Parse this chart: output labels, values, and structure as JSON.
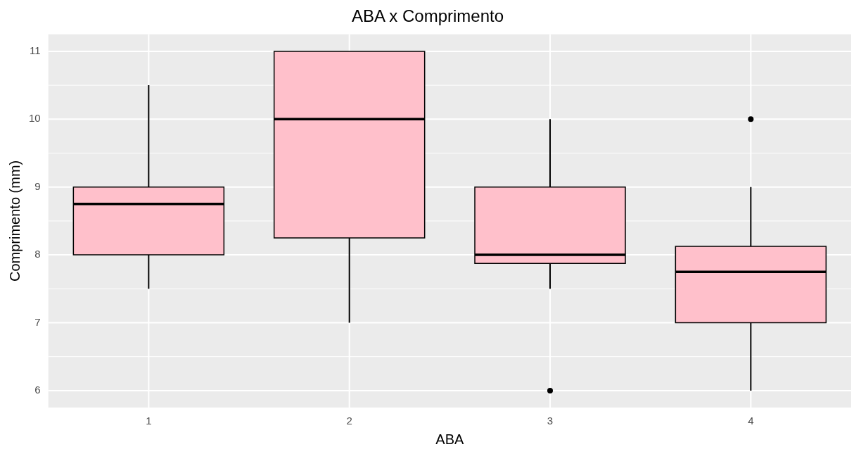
{
  "chart_data": {
    "type": "box",
    "title": "ABA x Comprimento",
    "xlabel": "ABA",
    "ylabel": "Comprimento (mm)",
    "categories": [
      "1",
      "2",
      "3",
      "4"
    ],
    "color": "#ffc0cb",
    "boxes": [
      {
        "low": 7.5,
        "q1": 8,
        "median": 8.75,
        "q3": 9,
        "high": 10.5
      },
      {
        "low": 7,
        "q1": 8.25,
        "median": 10,
        "q3": 11,
        "high": 11
      },
      {
        "low": 7.5,
        "q1": 7.875,
        "median": 8,
        "q3": 9,
        "high": 10,
        "outliers": [
          6
        ]
      },
      {
        "low": 6,
        "q1": 7,
        "median": 7.75,
        "q3": 8.125,
        "high": 9,
        "outliers": [
          10
        ]
      }
    ],
    "ylim": [
      5.75,
      11.25
    ],
    "yticks": [
      6,
      7,
      8,
      9,
      10,
      11
    ],
    "grid": true
  }
}
